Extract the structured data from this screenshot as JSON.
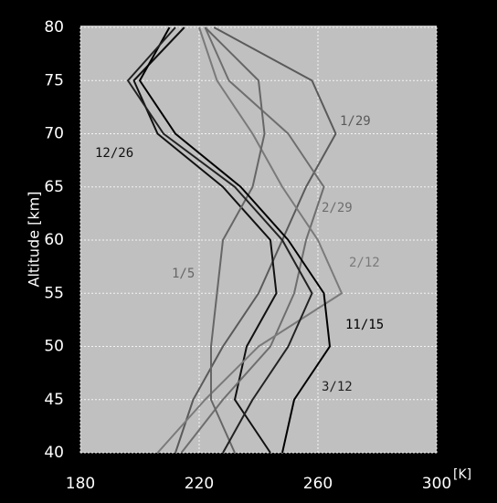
{
  "chart_data": {
    "type": "line",
    "y_label": "Altitude [km]",
    "x_unit": "[K]",
    "y": [
      40,
      45,
      50,
      55,
      60,
      65,
      70,
      75,
      80
    ],
    "xlim": [
      180,
      300
    ],
    "xticks": [
      180,
      220,
      260,
      300
    ],
    "ylim": [
      40,
      80
    ],
    "yticks": [
      40,
      45,
      50,
      55,
      60,
      65,
      70,
      75,
      80
    ],
    "grid": true,
    "series": [
      {
        "name": "1/29",
        "color": "#5a5a5a",
        "values": [
          212,
          218,
          228,
          240,
          248,
          256,
          266,
          258,
          225
        ]
      },
      {
        "name": "12/26",
        "color": "#111111",
        "values": [
          244,
          232,
          236,
          246,
          244,
          228,
          206,
          198,
          215
        ]
      },
      {
        "name": "2/29",
        "color": "#6e6e6e",
        "values": [
          214,
          228,
          244,
          252,
          256,
          262,
          250,
          230,
          222
        ]
      },
      {
        "name": "2/12",
        "color": "#7a7a7a",
        "values": [
          206,
          222,
          240,
          268,
          260,
          248,
          238,
          226,
          220
        ]
      },
      {
        "name": "1/5",
        "color": "#666666",
        "values": [
          232,
          224,
          224,
          226,
          228,
          238,
          242,
          240,
          222
        ]
      },
      {
        "name": "11/15",
        "color": "#000000",
        "values": [
          248,
          252,
          264,
          262,
          250,
          234,
          212,
          200,
          210
        ]
      },
      {
        "name": "3/12",
        "color": "#222222",
        "values": [
          228,
          238,
          250,
          258,
          248,
          232,
          208,
          196,
          212
        ]
      }
    ]
  }
}
